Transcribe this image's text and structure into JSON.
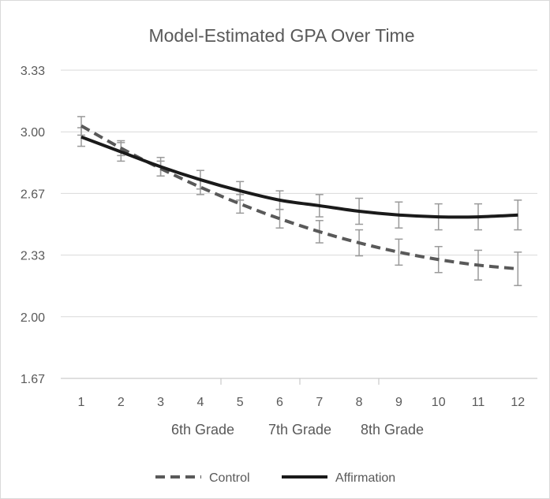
{
  "chart_data": {
    "type": "line",
    "title": "Model-Estimated GPA Over Time",
    "x": [
      1,
      2,
      3,
      4,
      5,
      6,
      7,
      8,
      9,
      10,
      11,
      12
    ],
    "x_tick_labels": [
      "1",
      "2",
      "3",
      "4",
      "5",
      "6",
      "7",
      "8",
      "9",
      "10",
      "11",
      "12"
    ],
    "y_tick_labels": [
      "3.33",
      "3.00",
      "2.67",
      "2.33",
      "2.00",
      "1.67"
    ],
    "ylim": [
      1.67,
      3.33
    ],
    "grid": "horizontal",
    "legend": "bottom",
    "group_labels": [
      "6th Grade",
      "7th Grade",
      "8th Grade"
    ],
    "series": [
      {
        "name": "Control",
        "style": "dashed",
        "color": "#595959",
        "values": [
          3.03,
          2.91,
          2.8,
          2.7,
          2.61,
          2.53,
          2.46,
          2.4,
          2.35,
          2.31,
          2.28,
          2.26
        ],
        "error": [
          0.05,
          0.04,
          0.04,
          0.04,
          0.05,
          0.05,
          0.06,
          0.07,
          0.07,
          0.07,
          0.08,
          0.09
        ]
      },
      {
        "name": "Affirmation",
        "style": "solid",
        "color": "#1a1a1a",
        "values": [
          2.97,
          2.89,
          2.81,
          2.74,
          2.68,
          2.63,
          2.6,
          2.57,
          2.55,
          2.54,
          2.54,
          2.55
        ],
        "error": [
          0.05,
          0.05,
          0.05,
          0.05,
          0.05,
          0.05,
          0.06,
          0.07,
          0.07,
          0.07,
          0.07,
          0.08
        ]
      }
    ]
  }
}
